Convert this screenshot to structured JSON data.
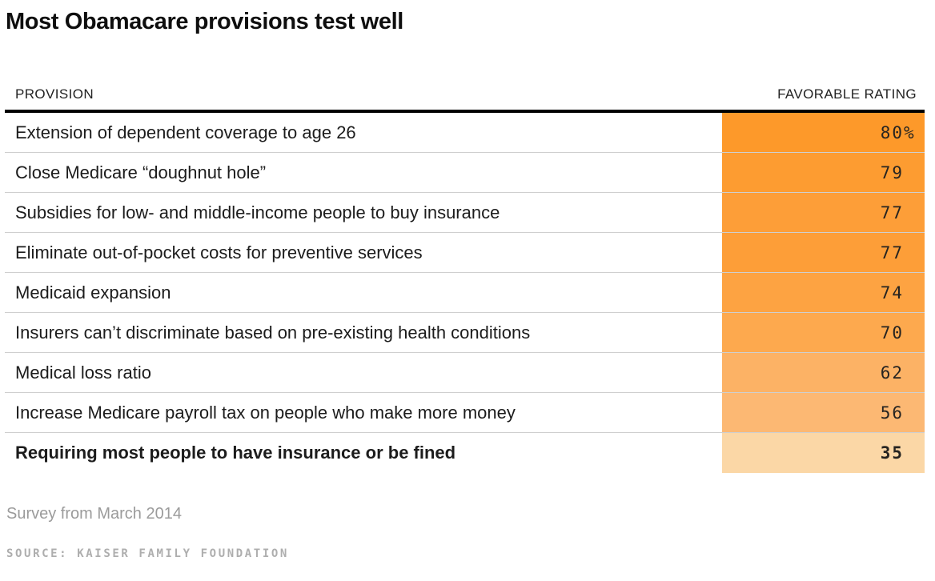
{
  "title": "Most Obamacare provisions test well",
  "header": {
    "provision": "PROVISION",
    "rating": "FAVORABLE RATING"
  },
  "chart_data": {
    "type": "table",
    "title": "Most Obamacare provisions test well",
    "columns": [
      "PROVISION",
      "FAVORABLE RATING"
    ],
    "value_range": [
      0,
      100
    ],
    "heatmap": {
      "high_color": "#fd992a",
      "low_color": "#fbd7a6"
    },
    "rows": [
      {
        "provision": "Extension of dependent coverage to age 26",
        "value": 80,
        "display": "80",
        "suffix": "%",
        "color": "#fd992a"
      },
      {
        "provision": "Close Medicare “doughnut hole”",
        "value": 79,
        "display": "79",
        "suffix": "",
        "color": "#fd9c31"
      },
      {
        "provision": "Subsidies for low- and middle-income people to buy insurance",
        "value": 77,
        "display": "77",
        "suffix": "",
        "color": "#fd9e38"
      },
      {
        "provision": "Eliminate out-of-pocket costs for preventive services",
        "value": 77,
        "display": "77",
        "suffix": "",
        "color": "#fd9e38"
      },
      {
        "provision": "Medicaid expansion",
        "value": 74,
        "display": "74",
        "suffix": "",
        "color": "#fda342"
      },
      {
        "provision": "Insurers can’t discriminate based on pre-existing health conditions",
        "value": 70,
        "display": "70",
        "suffix": "",
        "color": "#fda94e"
      },
      {
        "provision": "Medical loss ratio",
        "value": 62,
        "display": "62",
        "suffix": "",
        "color": "#fcb265"
      },
      {
        "provision": "Increase Medicare payroll tax on people who make more money",
        "value": 56,
        "display": "56",
        "suffix": "",
        "color": "#fcb873"
      },
      {
        "provision": "Requiring most people to have insurance or be fined",
        "value": 35,
        "display": "35",
        "suffix": "",
        "color": "#fbd7a6"
      }
    ]
  },
  "footer": {
    "note": "Survey from March 2014",
    "source": "SOURCE: KAISER FAMILY FOUNDATION"
  }
}
